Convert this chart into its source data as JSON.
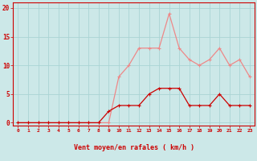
{
  "hours": [
    0,
    1,
    2,
    3,
    4,
    5,
    6,
    7,
    8,
    9,
    10,
    11,
    12,
    13,
    14,
    15,
    16,
    17,
    18,
    19,
    20,
    21,
    22,
    23
  ],
  "vent_moyen": [
    0,
    0,
    0,
    0,
    0,
    0,
    0,
    0,
    0,
    2,
    3,
    3,
    3,
    5,
    6,
    6,
    6,
    3,
    3,
    3,
    5,
    3,
    3,
    3
  ],
  "rafales": [
    0,
    0,
    0,
    0,
    0,
    0,
    0,
    0,
    0,
    0,
    8,
    10,
    13,
    13,
    13,
    19,
    13,
    11,
    10,
    11,
    13,
    10,
    11,
    8
  ],
  "bg_color": "#cce8e8",
  "grid_color": "#aad4d4",
  "line_moyen_color": "#cc0000",
  "line_rafales_color": "#ee8888",
  "xlabel": "Vent moyen/en rafales ( km/h )",
  "yticks": [
    0,
    5,
    10,
    15,
    20
  ],
  "ylim": [
    -0.5,
    21
  ],
  "xlim": [
    -0.5,
    23.5
  ],
  "marker_size": 2.5,
  "linewidth": 0.9
}
